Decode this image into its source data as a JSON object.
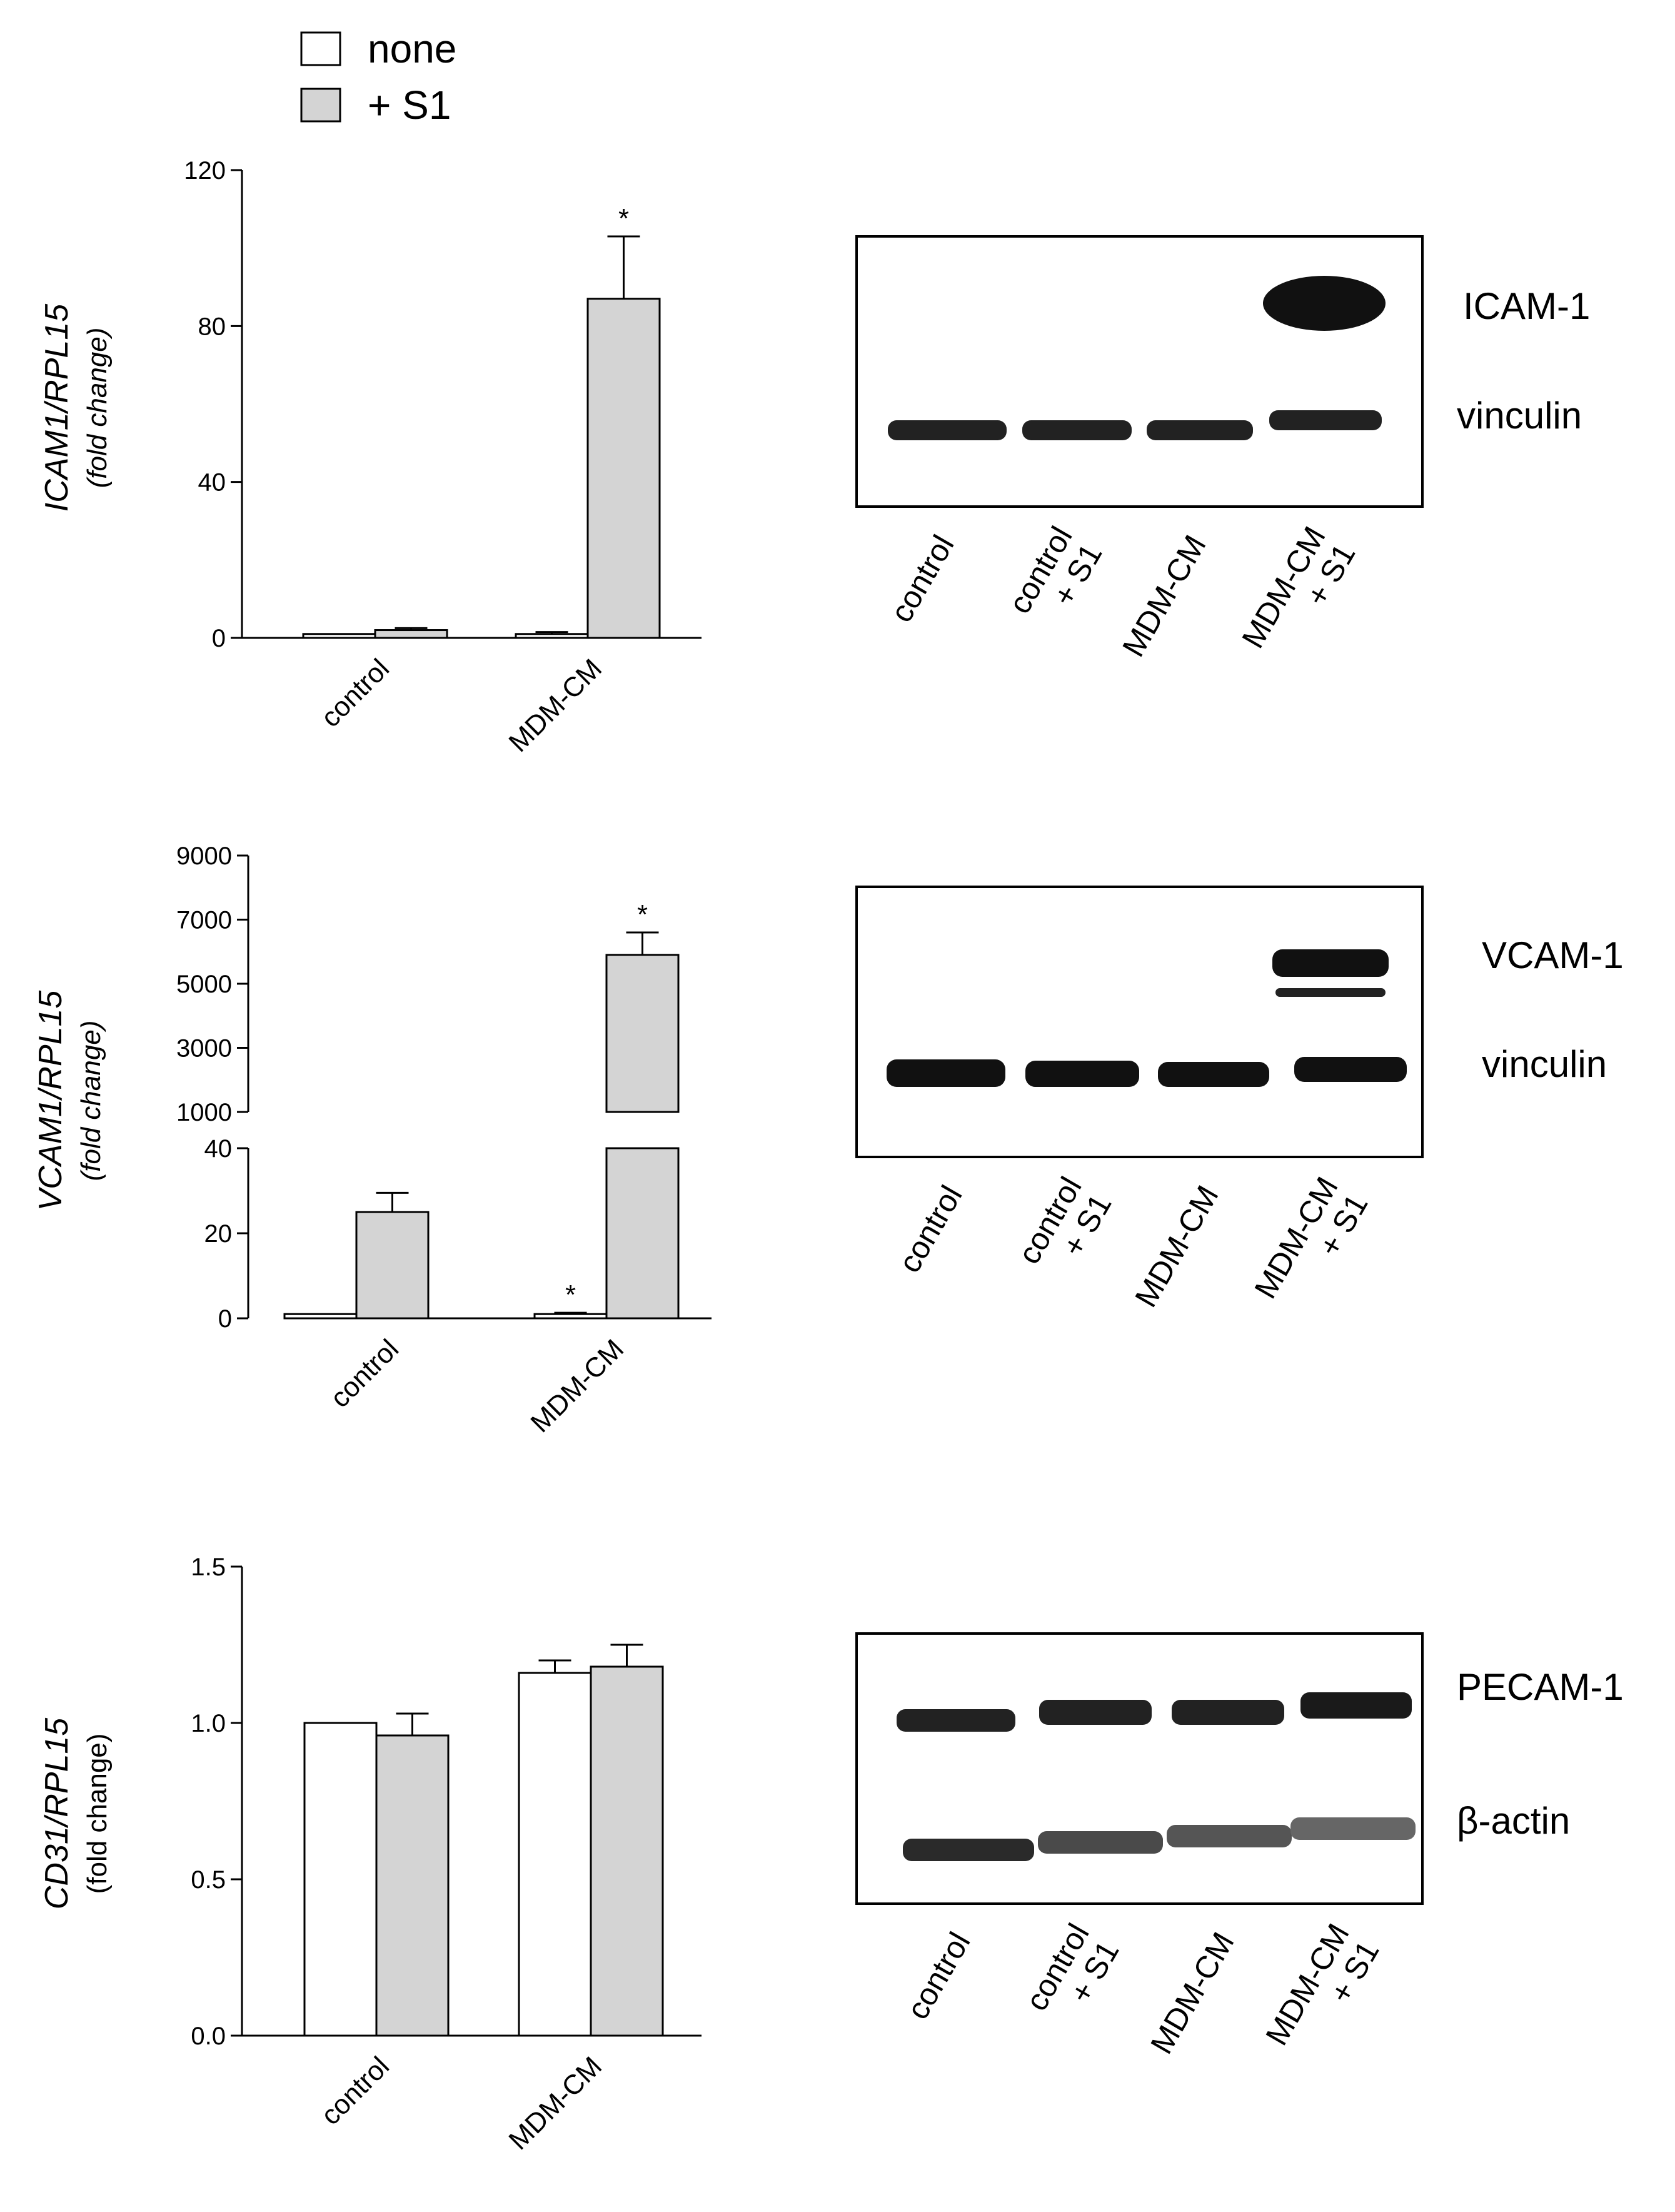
{
  "legend": {
    "items": [
      {
        "label": "none",
        "fill": "#ffffff"
      },
      {
        "label": "+ S1",
        "fill": "#d4d4d4"
      }
    ]
  },
  "chart_data": [
    {
      "type": "bar",
      "title": "",
      "categories": [
        "control",
        "MDM-CM"
      ],
      "series": [
        {
          "name": "none",
          "values": [
            1,
            1
          ],
          "errors": [
            0,
            0.5
          ]
        },
        {
          "name": "+ S1",
          "values": [
            2,
            87
          ],
          "errors": [
            0.5,
            16
          ]
        }
      ],
      "significance": [
        [
          "",
          ""
        ],
        [
          "",
          "*"
        ]
      ],
      "ylabel": "ICAM1/RPL15",
      "ylabel_sub": "(fold change)",
      "ylim": [
        0,
        120
      ],
      "yticks": [
        "0",
        "40",
        "80",
        "120"
      ],
      "ytick_values": [
        0,
        40,
        80,
        120
      ]
    },
    {
      "type": "bar",
      "title": "",
      "categories": [
        "control",
        "MDM-CM"
      ],
      "series": [
        {
          "name": "none",
          "values": [
            1,
            1
          ],
          "errors": [
            0,
            0.3
          ]
        },
        {
          "name": "+ S1",
          "values": [
            25,
            5900
          ],
          "errors": [
            4.5,
            700
          ]
        }
      ],
      "significance": [
        [
          "",
          ""
        ],
        [
          "*",
          "*"
        ]
      ],
      "ylabel": "VCAM1/RPL15",
      "ylabel_sub": "(fold change)",
      "axis_break": {
        "lower_ylim": [
          0,
          40
        ],
        "upper_ylim": [
          1000,
          9000
        ]
      },
      "yticks_lower": [
        "0",
        "20",
        "40"
      ],
      "ytick_values_lower": [
        0,
        20,
        40
      ],
      "yticks_upper": [
        "1000",
        "3000",
        "5000",
        "7000",
        "9000"
      ],
      "ytick_values_upper": [
        1000,
        3000,
        5000,
        7000,
        9000
      ]
    },
    {
      "type": "bar",
      "title": "",
      "categories": [
        "control",
        "MDM-CM"
      ],
      "series": [
        {
          "name": "none",
          "values": [
            1.0,
            1.16
          ],
          "errors": [
            0,
            0.04
          ]
        },
        {
          "name": "+ S1",
          "values": [
            0.96,
            1.18
          ],
          "errors": [
            0.07,
            0.07
          ]
        }
      ],
      "significance": [
        [
          "",
          ""
        ],
        [
          "",
          ""
        ]
      ],
      "ylabel": "CD31/RPL15",
      "ylabel_sub": "(fold change)",
      "ylim": [
        0,
        1.5
      ],
      "yticks": [
        "0.0",
        "0.5",
        "1.0",
        "1.5"
      ],
      "ytick_values": [
        0,
        0.5,
        1.0,
        1.5
      ]
    }
  ],
  "blots": [
    {
      "top_label": "ICAM-1",
      "bottom_label": "vinculin",
      "lanes": [
        "control",
        "control\n+ S1",
        "MDM-CM",
        "MDM-CM\n+ S1"
      ]
    },
    {
      "top_label": "VCAM-1",
      "bottom_label": "vinculin",
      "lanes": [
        "control",
        "control\n+ S1",
        "MDM-CM",
        "MDM-CM\n+ S1"
      ]
    },
    {
      "top_label": "PECAM-1",
      "bottom_label": "β-actin",
      "lanes": [
        "control",
        "control\n+ S1",
        "MDM-CM",
        "MDM-CM\n+ S1"
      ]
    }
  ],
  "colors": {
    "none_fill": "#ffffff",
    "s1_fill": "#d4d4d4",
    "axis": "#000000",
    "band": "#111111"
  }
}
